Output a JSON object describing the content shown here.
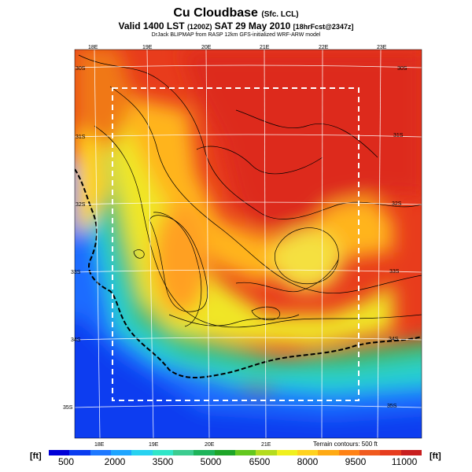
{
  "title": {
    "main": "Cu Cloudbase",
    "main_suffix": "(Sfc. LCL)",
    "valid": "Valid 1400 LST",
    "valid_utc": "(1200Z)",
    "date": "SAT 29 May 2010",
    "forecast": "[18hrFcst@2347z]",
    "credit": "DrJack BLIPMAP from RASP 12km GFS-initialized WRF-ARW model"
  },
  "map": {
    "lon_labels_top": [
      "18E",
      "19E",
      "20E",
      "21E",
      "22E",
      "23E"
    ],
    "lon_labels_bottom": [
      "18E",
      "19E",
      "20E",
      "21E"
    ],
    "lat_labels_left": [
      "30S",
      "31S",
      "32S",
      "33S",
      "34S",
      "35S"
    ],
    "lat_labels_right": [
      "30S",
      "31S",
      "32S",
      "33S",
      "34S",
      "35S"
    ],
    "terrain_note": "Terrain contours: 500 ft"
  },
  "colorbar": {
    "unit_left": "[ft]",
    "unit_right": "[ft]",
    "ticks": [
      "500",
      "2000",
      "3500",
      "5000",
      "6500",
      "8000",
      "9500",
      "11000"
    ],
    "colors": [
      "#0000d8",
      "#0a3cf0",
      "#1e78ff",
      "#1ea5ff",
      "#28d2f0",
      "#30e6c8",
      "#3ccc90",
      "#1eb45a",
      "#1ea528",
      "#64c81e",
      "#b4dc1e",
      "#f0f01e",
      "#ffd21e",
      "#ffaa14",
      "#ff8214",
      "#f05a1e",
      "#e63c1e",
      "#c81e1e"
    ]
  }
}
